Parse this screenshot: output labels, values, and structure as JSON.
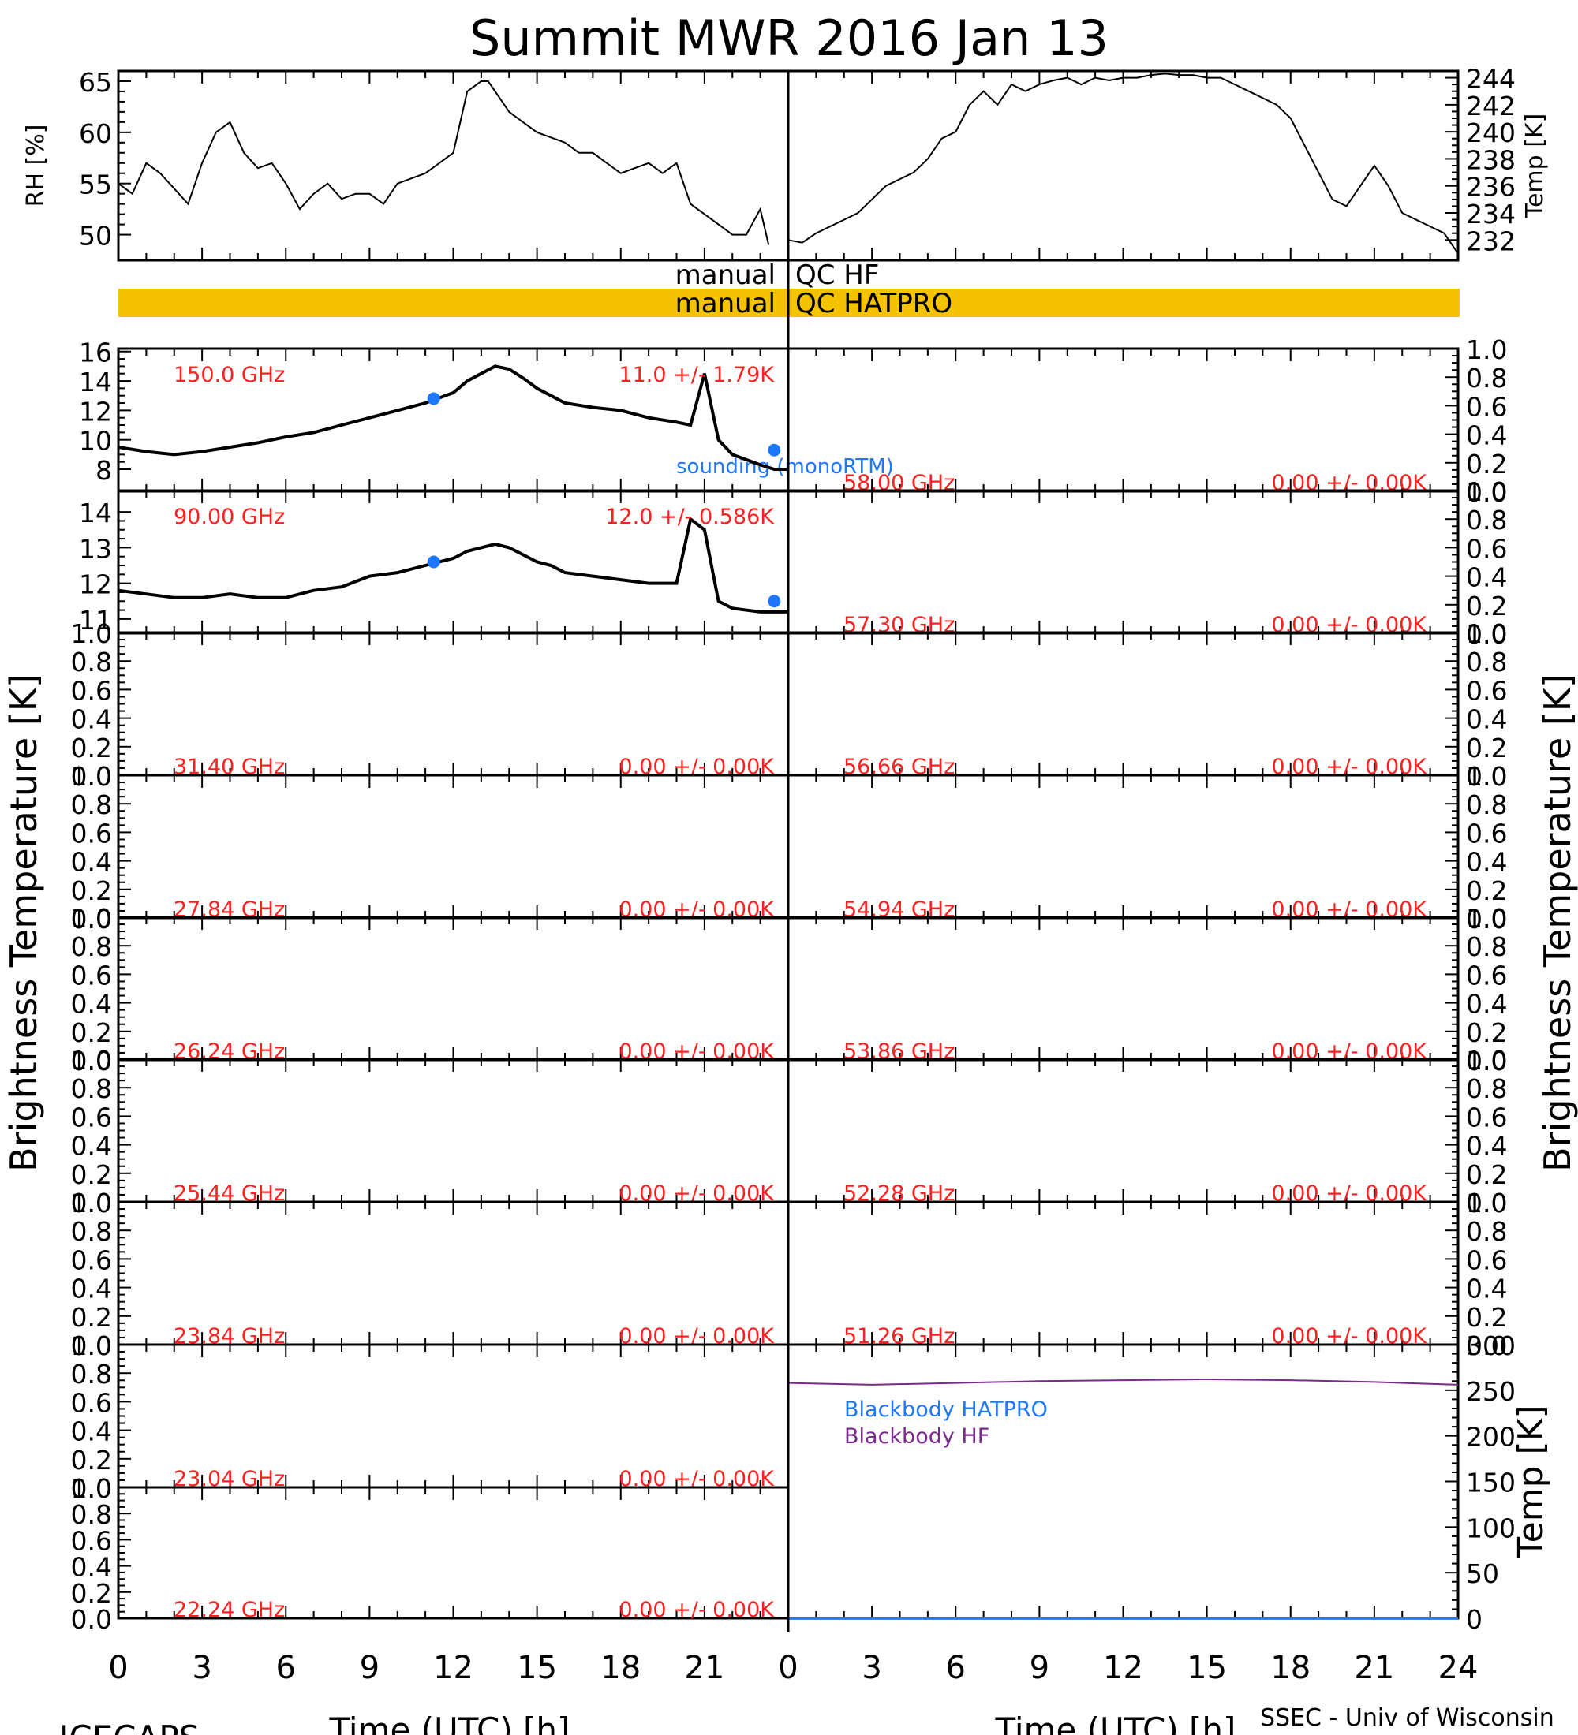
{
  "title": "Summit MWR 2016 Jan 13",
  "footer": {
    "left": "ICECAPS",
    "right": "SSEC - Univ of Wisconsin"
  },
  "x_axis": {
    "label": "Time (UTC) [h]",
    "left_ticks": [
      "0",
      "3",
      "6",
      "9",
      "12",
      "15",
      "18",
      "21"
    ],
    "right_ticks": [
      "0",
      "3",
      "6",
      "9",
      "12",
      "15",
      "18",
      "21",
      "24"
    ]
  },
  "left_axis_label": "Brightness Temperature [K]",
  "right_axis_label": "Brightness Temperature [K]",
  "qc": {
    "hf_label_left": "manual",
    "hf_label_right": "QC HF",
    "hatpro_label_left": "manual",
    "hatpro_label_right": "QC HATPRO",
    "hatpro_color": "#f5c200"
  },
  "legend": {
    "sounding": "sounding (monoRTM)",
    "sounding_color": "#1e78ff"
  },
  "colors": {
    "channel_text": "#ff2020",
    "sounding": "#1e78ff",
    "bb_hatpro": "#1e78ff",
    "bb_hf": "#7a2a8c"
  },
  "chart_data": [
    {
      "type": "line",
      "id": "rh",
      "ylabel": "RH [%]",
      "ylim": [
        47.5,
        66
      ],
      "yticks": [
        "50",
        "55",
        "60",
        "65"
      ],
      "xlim": [
        0,
        24
      ],
      "x": [
        0,
        0.5,
        1,
        1.5,
        2,
        2.5,
        3,
        3.5,
        4,
        4.5,
        5,
        5.5,
        6,
        6.5,
        7,
        7.5,
        8,
        8.5,
        9,
        9.5,
        10,
        10.5,
        11,
        11.5,
        12,
        12.5,
        13,
        13.25,
        13.5,
        14,
        14.5,
        15,
        15.5,
        16,
        16.5,
        17,
        17.5,
        18,
        18.5,
        19,
        19.5,
        20,
        20.5,
        21,
        21.5,
        22,
        22.5,
        23,
        23.3
      ],
      "values": [
        55,
        54,
        57,
        56,
        54.5,
        53,
        57,
        60,
        61,
        58,
        56.5,
        57,
        55,
        52.5,
        54,
        55,
        53.5,
        54,
        54,
        53,
        55,
        55.5,
        56,
        57,
        58,
        64,
        65,
        65,
        64,
        62,
        61,
        60,
        59.5,
        59,
        58,
        58,
        57,
        56,
        56.5,
        57,
        56,
        57,
        53,
        52,
        51,
        50,
        50,
        52.5,
        49
      ]
    },
    {
      "type": "line",
      "id": "temp",
      "ylabel": "Temp [K]",
      "ylim": [
        230.5,
        244.5
      ],
      "yticks": [
        "232",
        "234",
        "236",
        "238",
        "240",
        "242",
        "244"
      ],
      "xlim": [
        0,
        24
      ],
      "x": [
        0,
        0.5,
        1,
        1.5,
        2,
        2.5,
        3,
        3.5,
        4,
        4.5,
        5,
        5.5,
        6,
        6.5,
        7,
        7.5,
        8,
        8.5,
        9,
        9.5,
        10,
        10.5,
        11,
        11.5,
        12,
        12.5,
        13,
        13.5,
        14,
        14.5,
        15,
        15.5,
        16,
        16.5,
        17,
        17.5,
        18,
        18.5,
        19,
        19.5,
        20,
        20.5,
        21,
        21.5,
        22,
        22.5,
        23,
        23.5,
        24
      ],
      "values": [
        232,
        231.8,
        232.5,
        233,
        233.5,
        234,
        235,
        236,
        236.5,
        237,
        238,
        239.5,
        240,
        242,
        243,
        242,
        243.5,
        243,
        243.5,
        243.8,
        244,
        243.5,
        244,
        243.8,
        244,
        244,
        244.2,
        244.3,
        244.2,
        244.2,
        244,
        244,
        243.5,
        243,
        242.5,
        242,
        241,
        239,
        237,
        235,
        234.5,
        236,
        237.5,
        236,
        234,
        233.5,
        233,
        232.5,
        231
      ]
    },
    {
      "type": "line",
      "id": "ch-150",
      "frequency": "150.0 GHz",
      "stats": "11.0 +/- 1.79K",
      "ylim": [
        6.5,
        16.2
      ],
      "yticks": [
        "8",
        "10",
        "12",
        "14",
        "16"
      ],
      "xlim": [
        0,
        24
      ],
      "x": [
        0,
        1,
        2,
        3,
        4,
        5,
        6,
        7,
        8,
        9,
        10,
        11,
        12,
        12.5,
        13,
        13.5,
        14,
        14.5,
        15,
        15.5,
        16,
        17,
        18,
        19,
        20,
        20.5,
        21,
        21.5,
        22,
        23,
        23.5,
        24
      ],
      "values": [
        9.5,
        9.2,
        9.0,
        9.2,
        9.5,
        9.8,
        10.2,
        10.5,
        11,
        11.5,
        12,
        12.5,
        13.2,
        14,
        14.5,
        15,
        14.8,
        14.2,
        13.5,
        13,
        12.5,
        12.2,
        12,
        11.5,
        11.2,
        11,
        14.5,
        10,
        9,
        8.3,
        8,
        8
      ],
      "sounding": [
        [
          11.3,
          12.8
        ],
        [
          23.5,
          9.3
        ]
      ]
    },
    {
      "type": "line",
      "id": "ch-58.00",
      "frequency": "58.00 GHz",
      "stats": "0.00 +/- 0.00K",
      "ylim": [
        0,
        1
      ],
      "yticks": [
        "0.0",
        "0.2",
        "0.4",
        "0.6",
        "0.8",
        "1.0"
      ],
      "values": []
    },
    {
      "type": "line",
      "id": "ch-90",
      "frequency": "90.00 GHz",
      "stats": "12.0 +/- 0.586K",
      "ylim": [
        10.6,
        14.6
      ],
      "yticks": [
        "11",
        "12",
        "13",
        "14"
      ],
      "xlim": [
        0,
        24
      ],
      "x": [
        0,
        1,
        2,
        3,
        4,
        5,
        6,
        7,
        8,
        9,
        10,
        11,
        12,
        12.5,
        13,
        13.5,
        14,
        14.5,
        15,
        15.5,
        16,
        17,
        18,
        19,
        20,
        20.5,
        21,
        21.5,
        22,
        23,
        23.5,
        24
      ],
      "values": [
        11.8,
        11.7,
        11.6,
        11.6,
        11.7,
        11.6,
        11.6,
        11.8,
        11.9,
        12.2,
        12.3,
        12.5,
        12.7,
        12.9,
        13,
        13.1,
        13,
        12.8,
        12.6,
        12.5,
        12.3,
        12.2,
        12.1,
        12.0,
        12.0,
        13.8,
        13.5,
        11.5,
        11.3,
        11.2,
        11.2,
        11.2
      ],
      "sounding": [
        [
          11.3,
          12.6
        ],
        [
          23.5,
          11.5
        ]
      ]
    },
    {
      "type": "line",
      "id": "ch-57.30",
      "frequency": "57.30 GHz",
      "stats": "0.00 +/- 0.00K",
      "ylim": [
        0,
        1
      ],
      "yticks": [
        "0.0",
        "0.2",
        "0.4",
        "0.6",
        "0.8",
        "1.0"
      ],
      "values": []
    },
    {
      "type": "line",
      "id": "ch-31.40",
      "frequency": "31.40 GHz",
      "stats": "0.00 +/- 0.00K",
      "ylim": [
        0,
        1
      ],
      "yticks": [
        "0.0",
        "0.2",
        "0.4",
        "0.6",
        "0.8",
        "1.0"
      ],
      "values": []
    },
    {
      "type": "line",
      "id": "ch-56.66",
      "frequency": "56.66 GHz",
      "stats": "0.00 +/- 0.00K",
      "ylim": [
        0,
        1
      ],
      "yticks": [
        "0.0",
        "0.2",
        "0.4",
        "0.6",
        "0.8",
        "1.0"
      ],
      "values": []
    },
    {
      "type": "line",
      "id": "ch-27.84",
      "frequency": "27.84 GHz",
      "stats": "0.00 +/- 0.00K",
      "ylim": [
        0,
        1
      ],
      "yticks": [
        "0.0",
        "0.2",
        "0.4",
        "0.6",
        "0.8",
        "1.0"
      ],
      "values": []
    },
    {
      "type": "line",
      "id": "ch-54.94",
      "frequency": "54.94 GHz",
      "stats": "0.00 +/- 0.00K",
      "ylim": [
        0,
        1
      ],
      "yticks": [
        "0.0",
        "0.2",
        "0.4",
        "0.6",
        "0.8",
        "1.0"
      ],
      "values": []
    },
    {
      "type": "line",
      "id": "ch-26.24",
      "frequency": "26.24 GHz",
      "stats": "0.00 +/- 0.00K",
      "ylim": [
        0,
        1
      ],
      "yticks": [
        "0.0",
        "0.2",
        "0.4",
        "0.6",
        "0.8",
        "1.0"
      ],
      "values": []
    },
    {
      "type": "line",
      "id": "ch-53.86",
      "frequency": "53.86 GHz",
      "stats": "0.00 +/- 0.00K",
      "ylim": [
        0,
        1
      ],
      "yticks": [
        "0.0",
        "0.2",
        "0.4",
        "0.6",
        "0.8",
        "1.0"
      ],
      "values": []
    },
    {
      "type": "line",
      "id": "ch-25.44",
      "frequency": "25.44 GHz",
      "stats": "0.00 +/- 0.00K",
      "ylim": [
        0,
        1
      ],
      "yticks": [
        "0.0",
        "0.2",
        "0.4",
        "0.6",
        "0.8",
        "1.0"
      ],
      "values": []
    },
    {
      "type": "line",
      "id": "ch-52.28",
      "frequency": "52.28 GHz",
      "stats": "0.00 +/- 0.00K",
      "ylim": [
        0,
        1
      ],
      "yticks": [
        "0.0",
        "0.2",
        "0.4",
        "0.6",
        "0.8",
        "1.0"
      ],
      "values": []
    },
    {
      "type": "line",
      "id": "ch-23.84",
      "frequency": "23.84 GHz",
      "stats": "0.00 +/- 0.00K",
      "ylim": [
        0,
        1
      ],
      "yticks": [
        "0.0",
        "0.2",
        "0.4",
        "0.6",
        "0.8",
        "1.0"
      ],
      "values": []
    },
    {
      "type": "line",
      "id": "ch-51.26",
      "frequency": "51.26 GHz",
      "stats": "0.00 +/- 0.00K",
      "ylim": [
        0,
        1
      ],
      "yticks": [
        "0.0",
        "0.2",
        "0.4",
        "0.6",
        "0.8",
        "1.0"
      ],
      "values": []
    },
    {
      "type": "line",
      "id": "ch-23.04",
      "frequency": "23.04 GHz",
      "stats": "0.00 +/- 0.00K",
      "ylim": [
        0,
        1
      ],
      "yticks": [
        "0.0",
        "0.2",
        "0.4",
        "0.6",
        "0.8",
        "1.0"
      ],
      "values": []
    },
    {
      "type": "line",
      "id": "ch-22.24",
      "frequency": "22.24 GHz",
      "stats": "0.00 +/- 0.00K",
      "ylim": [
        0,
        1
      ],
      "yticks": [
        "0.0",
        "0.2",
        "0.4",
        "0.6",
        "0.8",
        "1.0"
      ],
      "values": []
    },
    {
      "type": "line",
      "id": "blackbody",
      "ylabel": "Temp [K]",
      "ylim": [
        0,
        300
      ],
      "yticks": [
        "0",
        "50",
        "100",
        "150",
        "200",
        "250",
        "300"
      ],
      "xlim": [
        0,
        24
      ],
      "series": [
        {
          "name": "Blackbody HATPRO",
          "x": [
            0,
            24
          ],
          "values": [
            0,
            0
          ]
        },
        {
          "name": "Blackbody HF",
          "x": [
            0,
            3,
            6,
            9,
            12,
            15,
            18,
            21,
            24
          ],
          "values": [
            258,
            256,
            258,
            260,
            261,
            262,
            261,
            259,
            256
          ]
        }
      ]
    }
  ]
}
